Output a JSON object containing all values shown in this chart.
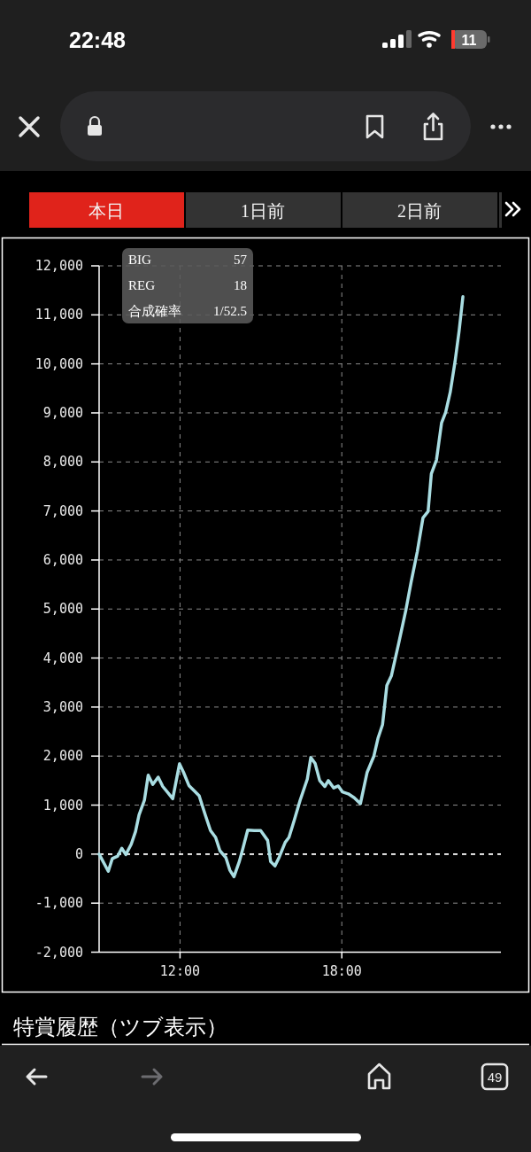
{
  "chart_data": {
    "type": "line",
    "x": [
      9.0,
      9.34,
      9.49,
      9.69,
      9.84,
      9.99,
      10.19,
      10.35,
      10.48,
      10.68,
      10.82,
      10.99,
      11.19,
      11.36,
      11.54,
      11.73,
      11.98,
      12.13,
      12.33,
      12.53,
      12.71,
      12.93,
      13.13,
      13.32,
      13.48,
      13.7,
      13.85,
      14.0,
      14.2,
      14.31,
      14.51,
      14.75,
      14.99,
      15.25,
      15.36,
      15.52,
      15.68,
      15.9,
      16.04,
      16.23,
      16.45,
      16.72,
      16.85,
      17.01,
      17.18,
      17.37,
      17.5,
      17.7,
      17.87,
      18.02,
      18.24,
      18.46,
      18.69,
      18.94,
      19.19,
      19.34,
      19.51,
      19.67,
      19.84,
      20.11,
      20.38,
      20.57,
      20.8,
      21.01,
      21.2,
      21.32,
      21.51,
      21.7,
      21.85,
      22.02,
      22.2,
      22.35,
      22.49
    ],
    "values": [
      0,
      -350,
      -90,
      -40,
      120,
      -10,
      200,
      460,
      800,
      1100,
      1610,
      1420,
      1570,
      1380,
      1260,
      1130,
      1840,
      1670,
      1400,
      1290,
      1190,
      810,
      480,
      340,
      70,
      -70,
      -330,
      -460,
      -150,
      70,
      490,
      480,
      480,
      280,
      -150,
      -240,
      -60,
      240,
      340,
      680,
      1090,
      1530,
      1970,
      1850,
      1500,
      1380,
      1500,
      1350,
      1390,
      1270,
      1230,
      1150,
      1030,
      1670,
      2000,
      2360,
      2640,
      3440,
      3640,
      4300,
      4990,
      5550,
      6170,
      6860,
      6990,
      7760,
      8040,
      8800,
      9010,
      9420,
      10050,
      10670,
      11370
    ],
    "color": "#a9dde2",
    "xlim": [
      9,
      23.9
    ],
    "xticks": [
      {
        "value": 12,
        "label": "12:00"
      },
      {
        "value": 18,
        "label": "18:00"
      }
    ],
    "ylim": [
      -2000,
      12000
    ],
    "yticks": [
      {
        "value": -2000,
        "label": "-2,000"
      },
      {
        "value": -1000,
        "label": "-1,000"
      },
      0,
      {
        "value": 1000,
        "label": "1,000"
      },
      {
        "value": 2000,
        "label": "2,000"
      },
      {
        "value": 3000,
        "label": "3,000"
      },
      {
        "value": 4000,
        "label": "4,000"
      },
      {
        "value": 5000,
        "label": "5,000"
      },
      {
        "value": 6000,
        "label": "6,000"
      },
      {
        "value": 7000,
        "label": "7,000"
      },
      {
        "value": 8000,
        "label": "8,000"
      },
      {
        "value": 9000,
        "label": "9,000"
      },
      {
        "value": 10000,
        "label": "10,000"
      },
      {
        "value": 11000,
        "label": "11,000"
      },
      {
        "value": 12000,
        "label": "12,000"
      }
    ],
    "grid": true,
    "ref_lines": [
      {
        "axis": "y",
        "value": 0,
        "color": "#ffffff",
        "line_style": "dashed"
      }
    ],
    "annotations": [
      "22:48",
      "11",
      "本日",
      "1日前",
      "2日前",
      "BIG",
      "57",
      "REG",
      "18",
      "合成確率",
      "1/52.5",
      "特賞履歴（ツブ表示）",
      "49"
    ]
  }
}
